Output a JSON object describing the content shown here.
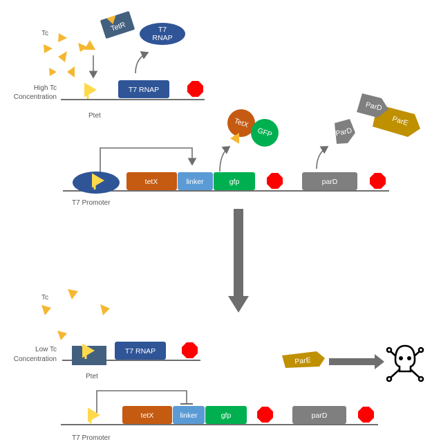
{
  "colors": {
    "tc": "#f5b731",
    "promoter": "#ffd94a",
    "t7rnap": "#2f5597",
    "tetr": "#44607f",
    "tetx": "#c55a11",
    "linker": "#5b9bd5",
    "gfp": "#00b050",
    "parD": "#7f7f7f",
    "parE": "#bf9000",
    "terminator": "#ff0000",
    "line": "#595959",
    "arrow": "#6e6e6e"
  },
  "top": {
    "tc_label": "Tc",
    "tetr_label": "TetR",
    "t7rnap_protein_line1": "T7",
    "t7rnap_protein_line2": "RNAP",
    "condition_line1": "High Tc",
    "condition_line2": "Concentration",
    "t7rnap_gene": "T7 RNAP",
    "promoter_label": "Ptet"
  },
  "construct_top": {
    "tetx_protein": "TetX",
    "gfp_protein": "GFP",
    "pard_protein": "ParD",
    "pard_complex": "ParD",
    "pare_complex": "ParE",
    "tetx_gene": "tetX",
    "linker_gene": "linker",
    "gfp_gene": "gfp",
    "pard_gene": "parD",
    "promoter_label": "T7 Promoter"
  },
  "bottom": {
    "tc_label": "Tc",
    "condition_line1": "Low Tc",
    "condition_line2": "Concentration",
    "t7rnap_gene": "T7 RNAP",
    "promoter_label": "Ptet",
    "pare_protein": "ParE"
  },
  "construct_bottom": {
    "tetx_gene": "tetX",
    "linker_gene": "linker",
    "gfp_gene": "gfp",
    "pard_gene": "parD",
    "promoter_label": "T7 Promoter"
  },
  "icons": {
    "death": "skull-crossbones-icon",
    "terminator": "stop-octagon-icon",
    "promoter": "bent-arrow-icon"
  }
}
